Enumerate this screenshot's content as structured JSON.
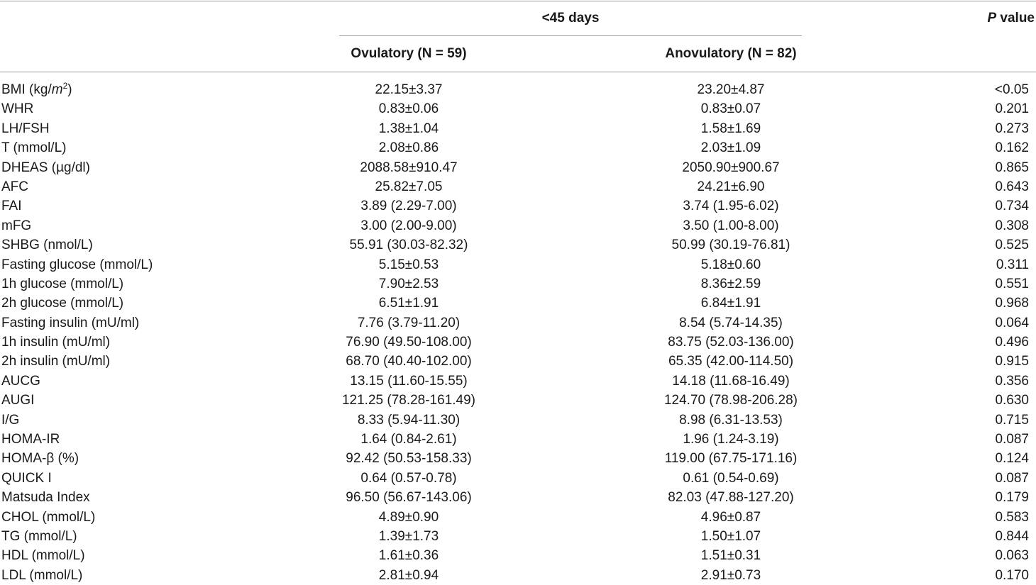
{
  "header": {
    "group_label": "<45 days",
    "p_value_label_italic": "P",
    "p_value_label_rest": " value",
    "col_ovulatory": "Ovulatory (N = 59)",
    "col_anovulatory": "Anovulatory (N = 82)"
  },
  "bmi_label": {
    "prefix": "BMI (kg/",
    "unit_italic": "m",
    "superscript": "2",
    "suffix": ")"
  },
  "rows": [
    {
      "label": "BMI (kg/m2)",
      "ovulatory": "22.15±3.37",
      "anovulatory": "23.20±4.87",
      "p": "<0.05"
    },
    {
      "label": "WHR",
      "ovulatory": "0.83±0.06",
      "anovulatory": "0.83±0.07",
      "p": "0.201"
    },
    {
      "label": "LH/FSH",
      "ovulatory": "1.38±1.04",
      "anovulatory": "1.58±1.69",
      "p": "0.273"
    },
    {
      "label": "T (mmol/L)",
      "ovulatory": "2.08±0.86",
      "anovulatory": "2.03±1.09",
      "p": "0.162"
    },
    {
      "label": "DHEAS (µg/dl)",
      "ovulatory": "2088.58±910.47",
      "anovulatory": "2050.90±900.67",
      "p": "0.865"
    },
    {
      "label": "AFC",
      "ovulatory": "25.82±7.05",
      "anovulatory": "24.21±6.90",
      "p": "0.643"
    },
    {
      "label": "FAI",
      "ovulatory": "3.89 (2.29-7.00)",
      "anovulatory": "3.74 (1.95-6.02)",
      "p": "0.734"
    },
    {
      "label": "mFG",
      "ovulatory": "3.00 (2.00-9.00)",
      "anovulatory": "3.50 (1.00-8.00)",
      "p": "0.308"
    },
    {
      "label": "SHBG (nmol/L)",
      "ovulatory": "55.91 (30.03-82.32)",
      "anovulatory": "50.99 (30.19-76.81)",
      "p": "0.525"
    },
    {
      "label": "Fasting glucose (mmol/L)",
      "ovulatory": "5.15±0.53",
      "anovulatory": "5.18±0.60",
      "p": "0.311"
    },
    {
      "label": "1h glucose (mmol/L)",
      "ovulatory": "7.90±2.53",
      "anovulatory": "8.36±2.59",
      "p": "0.551"
    },
    {
      "label": "2h glucose (mmol/L)",
      "ovulatory": "6.51±1.91",
      "anovulatory": "6.84±1.91",
      "p": "0.968"
    },
    {
      "label": "Fasting insulin (mU/ml)",
      "ovulatory": "7.76 (3.79-11.20)",
      "anovulatory": "8.54 (5.74-14.35)",
      "p": "0.064"
    },
    {
      "label": "1h insulin (mU/ml)",
      "ovulatory": "76.90 (49.50-108.00)",
      "anovulatory": "83.75 (52.03-136.00)",
      "p": "0.496"
    },
    {
      "label": "2h insulin (mU/ml)",
      "ovulatory": "68.70 (40.40-102.00)",
      "anovulatory": "65.35 (42.00-114.50)",
      "p": "0.915"
    },
    {
      "label": "AUCG",
      "ovulatory": "13.15 (11.60-15.55)",
      "anovulatory": "14.18 (11.68-16.49)",
      "p": "0.356"
    },
    {
      "label": "AUGI",
      "ovulatory": "121.25 (78.28-161.49)",
      "anovulatory": "124.70 (78.98-206.28)",
      "p": "0.630"
    },
    {
      "label": "I/G",
      "ovulatory": "8.33 (5.94-11.30)",
      "anovulatory": "8.98 (6.31-13.53)",
      "p": "0.715"
    },
    {
      "label": "HOMA-IR",
      "ovulatory": "1.64 (0.84-2.61)",
      "anovulatory": "1.96 (1.24-3.19)",
      "p": "0.087"
    },
    {
      "label": "HOMA-β (%)",
      "ovulatory": "92.42 (50.53-158.33)",
      "anovulatory": "119.00 (67.75-171.16)",
      "p": "0.124"
    },
    {
      "label": "QUICK I",
      "ovulatory": "0.64 (0.57-0.78)",
      "anovulatory": "0.61 (0.54-0.69)",
      "p": "0.087"
    },
    {
      "label": "Matsuda Index",
      "ovulatory": "96.50 (56.67-143.06)",
      "anovulatory": "82.03 (47.88-127.20)",
      "p": "0.179"
    },
    {
      "label": "CHOL (mmol/L)",
      "ovulatory": "4.89±0.90",
      "anovulatory": "4.96±0.87",
      "p": "0.583"
    },
    {
      "label": "TG (mmol/L)",
      "ovulatory": "1.39±1.73",
      "anovulatory": "1.50±1.07",
      "p": "0.844"
    },
    {
      "label": "HDL (mmol/L)",
      "ovulatory": "1.61±0.36",
      "anovulatory": "1.51±0.31",
      "p": "0.063"
    },
    {
      "label": "LDL (mmol/L)",
      "ovulatory": "2.81±0.94",
      "anovulatory": "2.91±0.73",
      "p": "0.170"
    }
  ]
}
